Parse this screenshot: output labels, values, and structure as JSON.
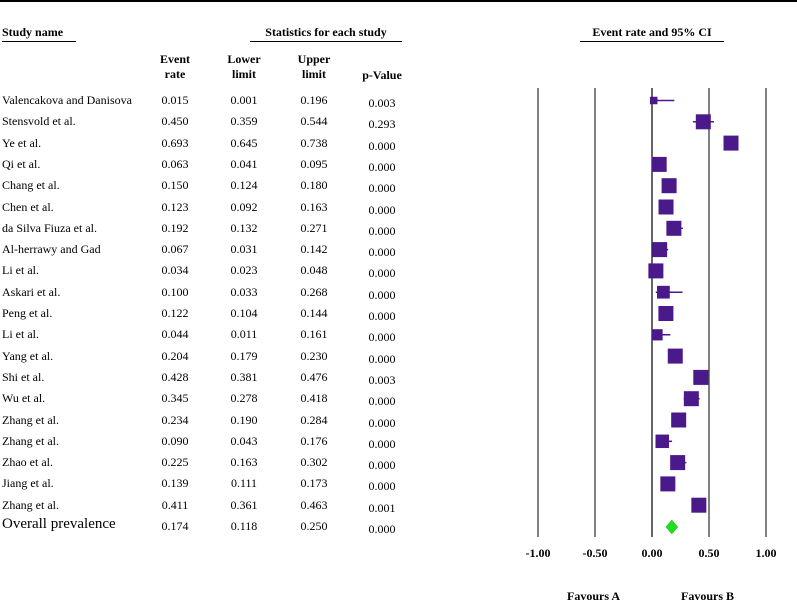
{
  "headers": {
    "study_name": "Study name",
    "statistics": "Statistics for each study",
    "plot_title": "Event rate and 95% CI"
  },
  "columns": {
    "event_rate": [
      "Event",
      "rate"
    ],
    "lower": [
      "Lower",
      "limit"
    ],
    "upper": [
      "Upper",
      "limit"
    ],
    "pvalue": "p-Value"
  },
  "favours": {
    "left": "Favours A",
    "right": "Favours B"
  },
  "colors": {
    "marker": "#4b1a8a",
    "diamond": "#22dd22"
  },
  "chart_data": {
    "type": "forest",
    "title": "Event rate and 95% CI",
    "xlim": [
      -1.0,
      1.0
    ],
    "ticks": [
      -1.0,
      -0.5,
      0.0,
      0.5,
      1.0
    ],
    "tick_labels": [
      "-1.00",
      "-0.50",
      "0.00",
      "0.50",
      "1.00"
    ],
    "gridlines": [
      -1.0,
      -0.5,
      0.5,
      1.0
    ],
    "studies": [
      {
        "name": "Valencakova and Danisova",
        "rate": "0.015",
        "lower": "0.001",
        "upper": "0.196",
        "p": "0.003",
        "weight": 0.5
      },
      {
        "name": "Stensvold et al.",
        "rate": "0.450",
        "lower": "0.359",
        "upper": "0.544",
        "p": "0.293",
        "weight": 1.0
      },
      {
        "name": "Ye et al.",
        "rate": "0.693",
        "lower": "0.645",
        "upper": "0.738",
        "p": "0.000",
        "weight": 1.0
      },
      {
        "name": "Qi et al.",
        "rate": "0.063",
        "lower": "0.041",
        "upper": "0.095",
        "p": "0.000",
        "weight": 1.0
      },
      {
        "name": "Chang et al.",
        "rate": "0.150",
        "lower": "0.124",
        "upper": "0.180",
        "p": "0.000",
        "weight": 1.0
      },
      {
        "name": "Chen et al.",
        "rate": "0.123",
        "lower": "0.092",
        "upper": "0.163",
        "p": "0.000",
        "weight": 1.0
      },
      {
        "name": "da Silva Fiuza et al.",
        "rate": "0.192",
        "lower": "0.132",
        "upper": "0.271",
        "p": "0.000",
        "weight": 1.0
      },
      {
        "name": "Al-herrawy and Gad",
        "rate": "0.067",
        "lower": "0.031",
        "upper": "0.142",
        "p": "0.000",
        "weight": 1.0
      },
      {
        "name": "Li et al.",
        "rate": "0.034",
        "lower": "0.023",
        "upper": "0.048",
        "p": "0.000",
        "weight": 1.0
      },
      {
        "name": "Askari et al.",
        "rate": "0.100",
        "lower": "0.033",
        "upper": "0.268",
        "p": "0.000",
        "weight": 0.85
      },
      {
        "name": "Peng et al.",
        "rate": "0.122",
        "lower": "0.104",
        "upper": "0.144",
        "p": "0.000",
        "weight": 1.0
      },
      {
        "name": "Li et al.",
        "rate": "0.044",
        "lower": "0.011",
        "upper": "0.161",
        "p": "0.000",
        "weight": 0.75
      },
      {
        "name": "Yang et al.",
        "rate": "0.204",
        "lower": "0.179",
        "upper": "0.230",
        "p": "0.000",
        "weight": 1.0
      },
      {
        "name": "Shi et al.",
        "rate": "0.428",
        "lower": "0.381",
        "upper": "0.476",
        "p": "0.003",
        "weight": 1.0
      },
      {
        "name": "Wu et al.",
        "rate": "0.345",
        "lower": "0.278",
        "upper": "0.418",
        "p": "0.000",
        "weight": 1.0
      },
      {
        "name": "Zhang  et al.",
        "rate": "0.234",
        "lower": "0.190",
        "upper": "0.284",
        "p": "0.000",
        "weight": 1.0
      },
      {
        "name": "Zhang et al.",
        "rate": "0.090",
        "lower": "0.043",
        "upper": "0.176",
        "p": "0.000",
        "weight": 0.9
      },
      {
        "name": "Zhao et al.",
        "rate": "0.225",
        "lower": "0.163",
        "upper": "0.302",
        "p": "0.000",
        "weight": 1.0
      },
      {
        "name": "Jiang  et al.",
        "rate": "0.139",
        "lower": "0.111",
        "upper": "0.173",
        "p": "0.000",
        "weight": 1.0
      },
      {
        "name": "Zhang et al.",
        "rate": "0.411",
        "lower": "0.361",
        "upper": "0.463",
        "p": "0.001",
        "weight": 1.0
      }
    ],
    "overall": {
      "name": "Overall prevalence",
      "rate": "0.174",
      "lower": "0.118",
      "upper": "0.250",
      "p": "0.000"
    }
  }
}
